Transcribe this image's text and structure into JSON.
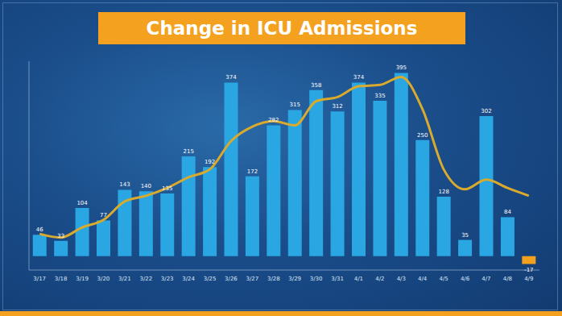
{
  "chart_data": {
    "type": "bar",
    "title": "Change in ICU Admissions",
    "categories": [
      "3/17",
      "3/18",
      "3/19",
      "3/20",
      "3/21",
      "3/22",
      "3/23",
      "3/24",
      "3/25",
      "3/26",
      "3/27",
      "3/28",
      "3/29",
      "3/30",
      "3/31",
      "4/1",
      "4/2",
      "4/3",
      "4/4",
      "4/5",
      "4/6",
      "4/7",
      "4/8",
      "4/9"
    ],
    "series": [
      {
        "type": "bar",
        "data_labels": true,
        "colors": [
          "#2aa6e2",
          "#2aa6e2",
          "#2aa6e2",
          "#2aa6e2",
          "#2aa6e2",
          "#2aa6e2",
          "#2aa6e2",
          "#2aa6e2",
          "#2aa6e2",
          "#2aa6e2",
          "#2aa6e2",
          "#2aa6e2",
          "#2aa6e2",
          "#2aa6e2",
          "#2aa6e2",
          "#2aa6e2",
          "#2aa6e2",
          "#2aa6e2",
          "#2aa6e2",
          "#2aa6e2",
          "#2aa6e2",
          "#2aa6e2",
          "#2aa6e2",
          "#f2a01e"
        ],
        "values": [
          46,
          33,
          104,
          77,
          143,
          140,
          135,
          215,
          192,
          374,
          172,
          282,
          315,
          358,
          312,
          374,
          335,
          395,
          250,
          128,
          35,
          302,
          84,
          -17
        ]
      },
      {
        "type": "line",
        "color": "#d9aa2c",
        "values": [
          48,
          40,
          62,
          78,
          118,
          130,
          147,
          170,
          187,
          248,
          279,
          291,
          282,
          334,
          343,
          366,
          369,
          386,
          317,
          187,
          144,
          165,
          147,
          130
        ]
      }
    ],
    "ylim": [
      -30,
      420
    ],
    "grid": false,
    "tick_labels": "x"
  }
}
